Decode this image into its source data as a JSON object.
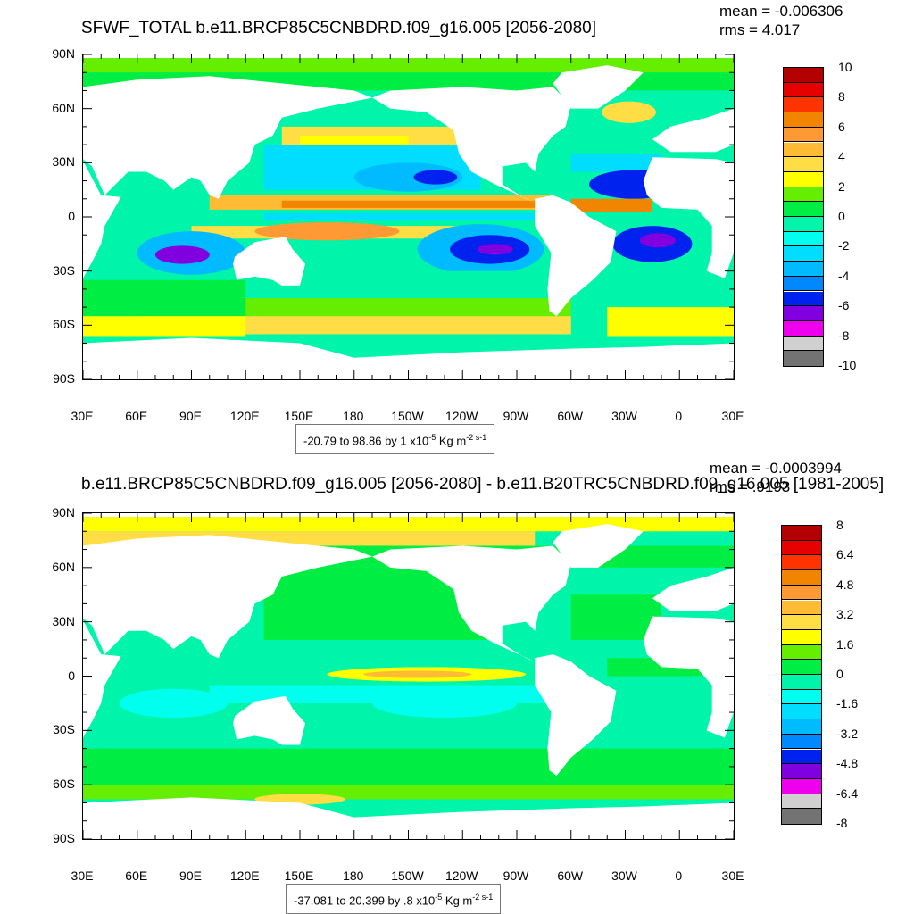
{
  "chart_data": [
    {
      "type": "heatmap",
      "title": "SFWF_TOTAL b.e11.BRCP85C5CNBDRD.f09_g16.005 [2056-2080]",
      "stats": {
        "mean": "mean = -0.006306",
        "rms": "rms = 4.017"
      },
      "x_ticks": [
        "30E",
        "60E",
        "90E",
        "120E",
        "150E",
        "180",
        "150W",
        "120W",
        "90W",
        "60W",
        "30W",
        "0",
        "30E"
      ],
      "y_ticks": [
        "90N",
        "60N",
        "30N",
        "0",
        "30S",
        "60S",
        "90S"
      ],
      "colorbar": {
        "colors": [
          "#b30000",
          "#e60000",
          "#ff3300",
          "#f28500",
          "#ff9933",
          "#ffbb33",
          "#ffdd44",
          "#ffff00",
          "#66ee00",
          "#00ee44",
          "#00f5aa",
          "#00ffee",
          "#00ddff",
          "#00bbff",
          "#0088ff",
          "#0022ee",
          "#8000e0",
          "#ee00ee",
          "#d0d0d0",
          "#737373"
        ],
        "labels": [
          "10",
          "8",
          "6",
          "4",
          "2",
          "0",
          "-2",
          "-4",
          "-6",
          "-8",
          "-10"
        ]
      },
      "range_text": {
        "prefix": "-20.79 to 98.86 by 1 x10",
        "exp": "-5",
        "unit": " Kg m",
        "unit_exp": "-2 s-1"
      }
    },
    {
      "type": "heatmap",
      "title": "b.e11.BRCP85C5CNBDRD.f09_g16.005 [2056-2080] - b.e11.B20TRC5CNBDRD.f09_g16.005 [1981-2005]",
      "stats": {
        "mean": "mean = -0.0003994",
        "rms": "rms = .9193"
      },
      "x_ticks": [
        "30E",
        "60E",
        "90E",
        "120E",
        "150E",
        "180",
        "150W",
        "120W",
        "90W",
        "60W",
        "30W",
        "0",
        "30E"
      ],
      "y_ticks": [
        "90N",
        "60N",
        "30N",
        "0",
        "30S",
        "60S",
        "90S"
      ],
      "colorbar": {
        "colors": [
          "#b30000",
          "#e60000",
          "#ff3300",
          "#f28500",
          "#ff9933",
          "#ffbb33",
          "#ffdd44",
          "#ffff00",
          "#66ee00",
          "#00ee44",
          "#00f5aa",
          "#00ffee",
          "#00ddff",
          "#00bbff",
          "#0088ff",
          "#0022ee",
          "#8000e0",
          "#ee00ee",
          "#d0d0d0",
          "#737373"
        ],
        "labels": [
          "8",
          "6.4",
          "4.8",
          "3.2",
          "1.6",
          "0",
          "-1.6",
          "-3.2",
          "-4.8",
          "-6.4",
          "-8"
        ]
      },
      "range_text": {
        "prefix": "-37.081 to 20.399 by .8 x10",
        "exp": "-5",
        "unit": " Kg m",
        "unit_exp": "-2 s-1"
      }
    }
  ]
}
